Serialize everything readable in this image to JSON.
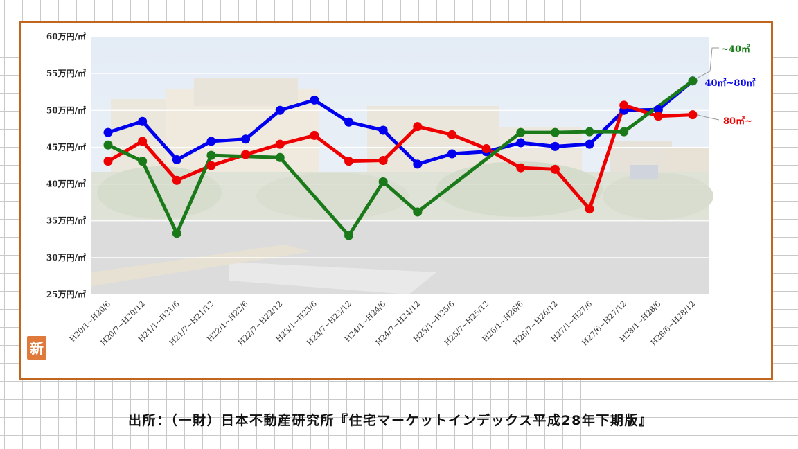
{
  "chart_data": {
    "type": "line",
    "categories": [
      "H20/1~H20/6",
      "H20/7~H20/12",
      "H21/1~H21/6",
      "H21/7~H21/12",
      "H22/1~H22/6",
      "H22/7~H22/12",
      "H23/1~H23/6",
      "H23/7~H23/12",
      "H24/1~H24/6",
      "H24/7~H24/12",
      "H25/1~H25/6",
      "H25/7~H25/12",
      "H26/1~H26/6",
      "H26/7~H26/12",
      "H27/1~H27/6",
      "H27/6~H27/12",
      "H28/1~H28/6",
      "H28/6~H28/12"
    ],
    "y_tick_labels": [
      "60万円/㎡",
      "55万円/㎡",
      "50万円/㎡",
      "45万円/㎡",
      "40万円/㎡",
      "35万円/㎡",
      "30万円/㎡",
      "25万円/㎡"
    ],
    "y_ticks": [
      60,
      55,
      50,
      45,
      40,
      35,
      30,
      25
    ],
    "ylim": [
      25,
      60
    ],
    "grid": true,
    "series": [
      {
        "name": "40㎡~80㎡",
        "color": "#0000ee",
        "values": [
          47.0,
          48.5,
          43.3,
          45.8,
          46.1,
          50.0,
          51.4,
          48.4,
          47.3,
          42.7,
          44.1,
          44.4,
          45.6,
          45.1,
          45.4,
          50.0,
          50.1,
          54.0
        ]
      },
      {
        "name": "80㎡~",
        "color": "#ee0000",
        "values": [
          43.1,
          45.8,
          40.5,
          42.5,
          44.0,
          45.4,
          46.6,
          43.1,
          43.2,
          47.8,
          46.7,
          44.8,
          42.2,
          42.0,
          36.6,
          50.7,
          49.2,
          49.4
        ]
      },
      {
        "name": "~40㎡",
        "color": "#1a7a1a",
        "values": [
          45.3,
          43.1,
          33.3,
          43.9,
          null,
          43.6,
          null,
          33.0,
          40.3,
          36.2,
          null,
          null,
          47.0,
          47.0,
          47.1,
          47.1,
          null,
          54.0
        ]
      }
    ]
  },
  "badge": {
    "text": "新",
    "color": "#e07a3a"
  },
  "source": {
    "text": "出所：（一財）日本不動産研究所『住宅マーケットインデックス平成28年下期版』"
  }
}
